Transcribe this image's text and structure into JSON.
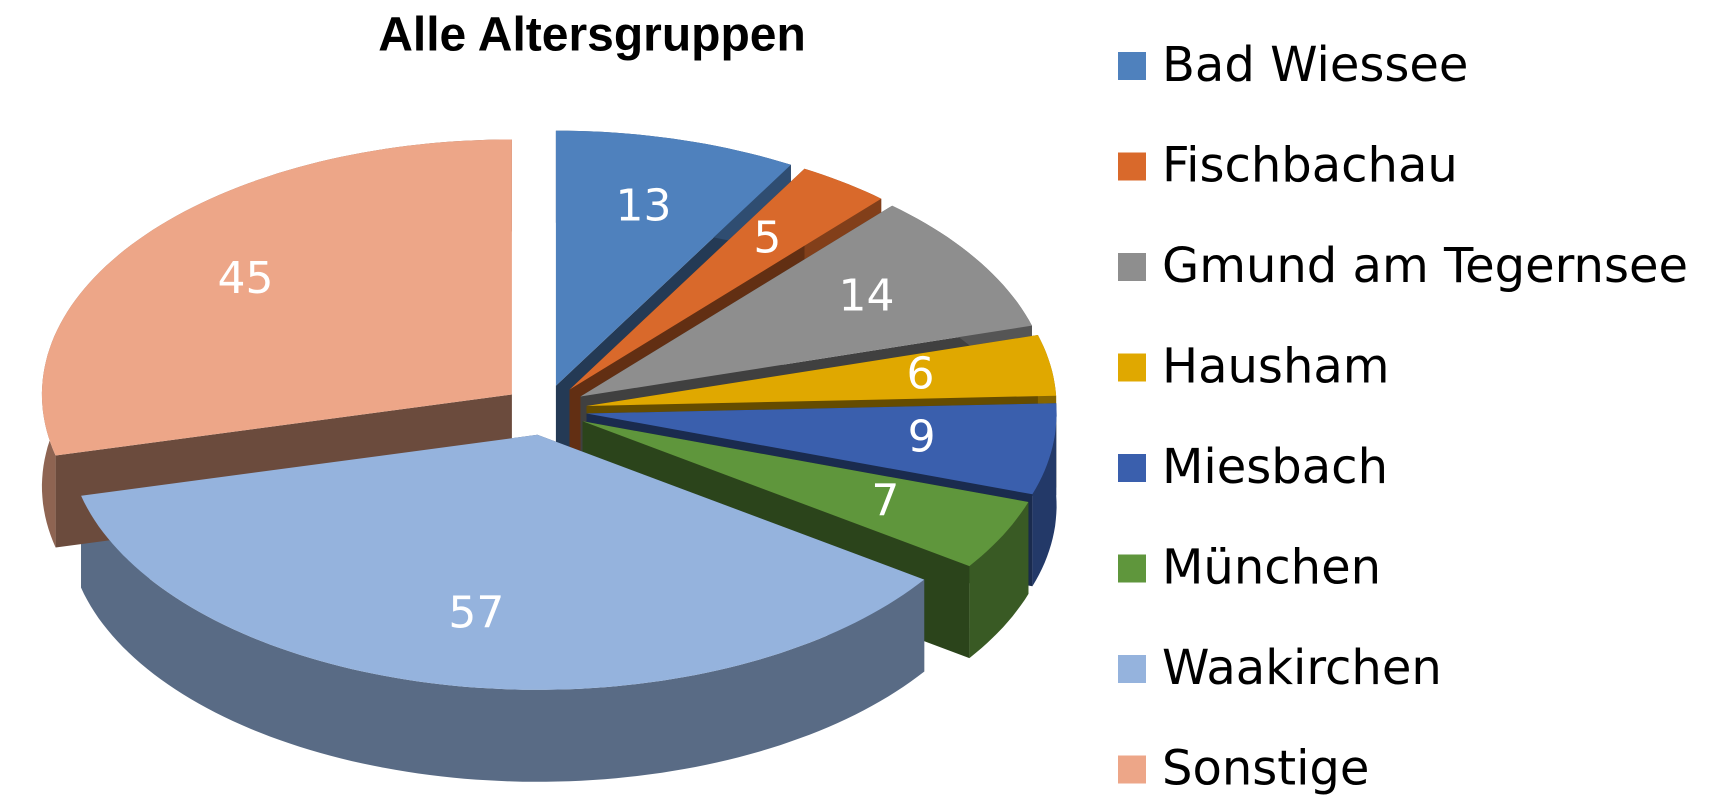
{
  "chart_data": {
    "type": "pie",
    "title": "Alle Altersgruppen",
    "categories": [
      "Bad Wiessee",
      "Fischbachau",
      "Gmund am Tegernsee",
      "Hausham",
      "Miesbach",
      "München",
      "Waakirchen",
      "Sonstige"
    ],
    "values": [
      13,
      5,
      14,
      6,
      9,
      7,
      57,
      45
    ],
    "colors": [
      "#4f81bd",
      "#d9692b",
      "#8e8e8e",
      "#e0a800",
      "#3a5fad",
      "#5f963c",
      "#95b3dd",
      "#eda688"
    ],
    "legend": "right"
  }
}
